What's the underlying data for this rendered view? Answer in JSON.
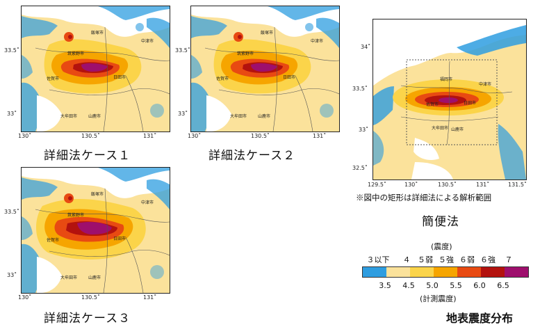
{
  "maps": [
    {
      "id": "case1",
      "caption": "詳細法ケース１",
      "x_ticks": [
        "130˚",
        "130.5˚",
        "131˚"
      ],
      "y_ticks": [
        "33.5˚",
        "33˚"
      ],
      "places": [
        "飯塚市",
        "中津市",
        "筑紫野市",
        "日田市",
        "佐賀市",
        "大牟田市",
        "山鹿市"
      ]
    },
    {
      "id": "case2",
      "caption": "詳細法ケース２",
      "x_ticks": [
        "130˚",
        "130.5˚",
        "131˚"
      ],
      "y_ticks": [
        "33.5˚",
        "33˚"
      ],
      "places": [
        "飯塚市",
        "中津市",
        "筑紫野市",
        "日田市",
        "佐賀市",
        "大牟田市",
        "山鹿市"
      ]
    },
    {
      "id": "case3",
      "caption": "詳細法ケース３",
      "x_ticks": [
        "130˚",
        "130.5˚",
        "131˚"
      ],
      "y_ticks": [
        "33.5˚",
        "33˚"
      ],
      "places": [
        "飯塚市",
        "中津市",
        "筑紫野市",
        "日田市",
        "佐賀市",
        "大牟田市",
        "山鹿市"
      ]
    },
    {
      "id": "simple",
      "caption": "簡便法",
      "x_ticks": [
        "129.5˚",
        "130˚",
        "130.5˚",
        "131˚",
        "131.5˚"
      ],
      "y_ticks": [
        "34˚",
        "33.5˚",
        "33˚",
        "32.5˚"
      ],
      "places": [
        "福岡市",
        "中津市",
        "佐賀市",
        "日田市",
        "大牟田市",
        "山鹿市"
      ]
    }
  ],
  "note": "※図中の矩形は詳細法による解析範囲",
  "legend": {
    "title": "(震度)",
    "categories": [
      "３以下",
      "４",
      "５弱",
      "５強",
      "６弱",
      "６強",
      "７"
    ],
    "colors": [
      "#2e9de0",
      "#fbe29b",
      "#fbd44a",
      "#f6a500",
      "#e84a12",
      "#b3120e",
      "#9e0f6d"
    ],
    "numbers": [
      "3.5",
      "4.5",
      "5.0",
      "5.5",
      "6.0",
      "6.5"
    ],
    "subtitle": "(計測震度)"
  },
  "figure_title": "地表震度分布"
}
